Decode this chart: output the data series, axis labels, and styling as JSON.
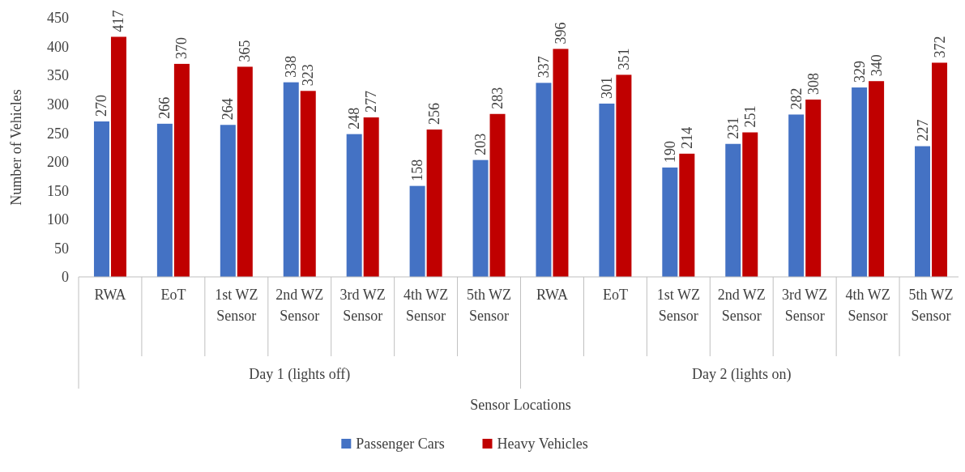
{
  "chart_data": {
    "type": "bar",
    "xlabel": "Sensor Locations",
    "ylabel": "Number of Vehicles",
    "categories": [
      "RWA",
      "EoT",
      "1st WZ Sensor",
      "2nd WZ Sensor",
      "3rd WZ Sensor",
      "4th WZ Sensor",
      "5th WZ Sensor",
      "RWA",
      "EoT",
      "1st WZ Sensor",
      "2nd WZ Sensor",
      "3rd WZ Sensor",
      "4th WZ Sensor",
      "5th WZ Sensor"
    ],
    "series": [
      {
        "name": "Passenger Cars",
        "color": "#4472c4",
        "values": [
          270,
          266,
          264,
          338,
          248,
          158,
          203,
          337,
          301,
          190,
          231,
          282,
          329,
          227
        ]
      },
      {
        "name": "Heavy Vehicles",
        "color": "#c00000",
        "values": [
          417,
          370,
          365,
          323,
          277,
          256,
          283,
          396,
          351,
          214,
          251,
          308,
          340,
          372
        ]
      }
    ],
    "annotations": [
      "Day 1 (lights off)",
      "Day 2 (lights on)"
    ],
    "ylim": [
      0,
      450
    ],
    "yticks": [
      0,
      50,
      100,
      150,
      200,
      250,
      300,
      350,
      400,
      450
    ],
    "data_labels": true,
    "legend": "bottom"
  }
}
